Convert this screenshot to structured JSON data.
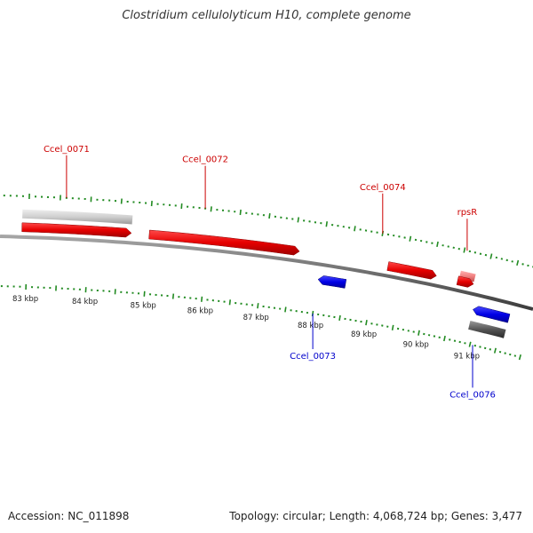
{
  "title": "Clostridium cellulolyticum H10, complete genome",
  "footer": {
    "accession_label": "Accession:",
    "accession_value": "NC_011898",
    "topology_label": "Topology:",
    "topology_value": "circular",
    "length_label": "Length:",
    "length_value": "4,068,724 bp",
    "genes_label": "Genes:",
    "genes_value": "3,477"
  },
  "scale": {
    "unit": "kbp",
    "ticks": [
      "83 kbp",
      "84 kbp",
      "85 kbp",
      "86 kbp",
      "87 kbp",
      "88 kbp",
      "89 kbp",
      "90 kbp",
      "91 kbp"
    ]
  },
  "colors": {
    "forward_cds": "#e60000",
    "reverse_cds": "#0000e0",
    "forward_gene_shadow": "#c8c8c8",
    "reverse_gene_shadow": "#555555",
    "rna": "#f08080",
    "backbone": "#777777",
    "tick": "#228b22",
    "forward_label": "#cc0000",
    "reverse_label": "#0000cc"
  },
  "features": [
    {
      "label": "Ccel_0071",
      "strand": "forward",
      "start_kbp": 82.9,
      "end_kbp": 84.7,
      "kind": "cds"
    },
    {
      "label": "Ccel_0072",
      "strand": "forward",
      "start_kbp": 85.0,
      "end_kbp": 87.6,
      "kind": "cds"
    },
    {
      "label": "Ccel_0073",
      "strand": "reverse",
      "start_kbp": 88.0,
      "end_kbp": 88.5,
      "kind": "cds"
    },
    {
      "label": "Ccel_0074",
      "strand": "forward",
      "start_kbp": 89.2,
      "end_kbp": 90.1,
      "kind": "cds"
    },
    {
      "label": "rpsR",
      "strand": "forward",
      "start_kbp": 90.5,
      "end_kbp": 90.8,
      "kind": "cds"
    },
    {
      "label": "Ccel_0076",
      "strand": "reverse",
      "start_kbp": 90.9,
      "end_kbp": 91.6,
      "kind": "cds"
    }
  ]
}
